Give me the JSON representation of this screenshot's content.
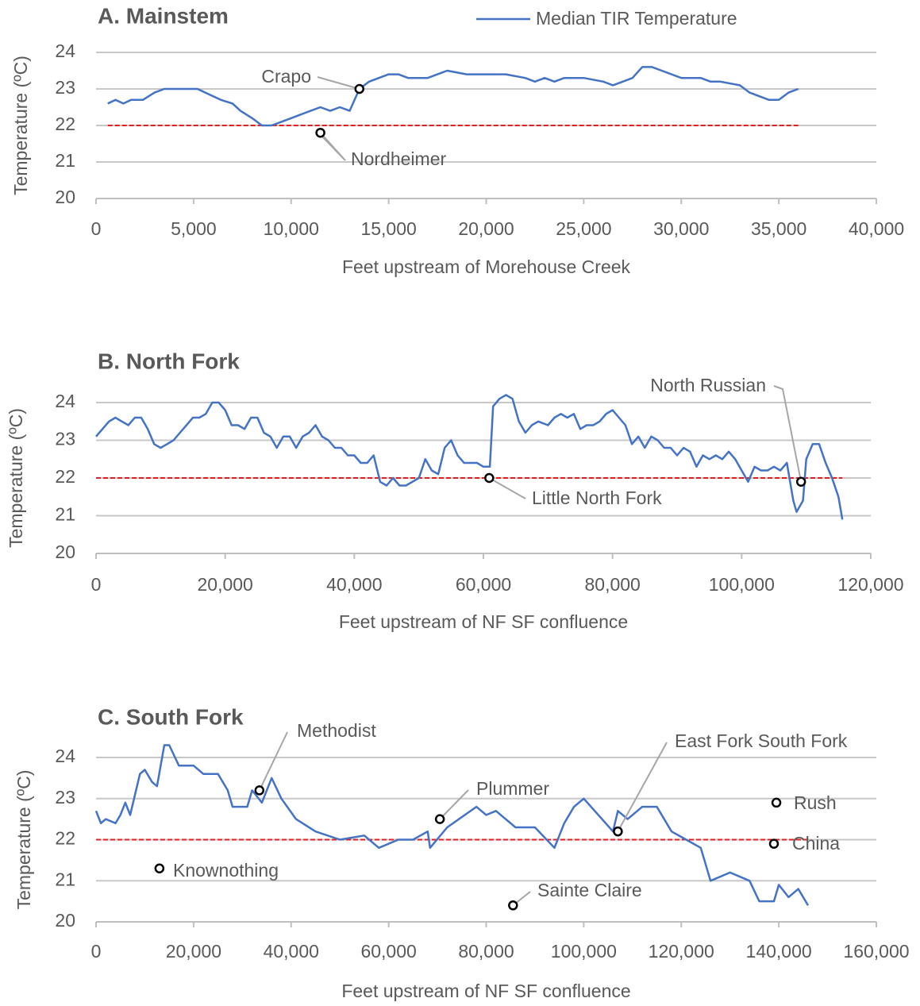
{
  "chart_data": [
    {
      "type": "line",
      "title": "A. Mainstem",
      "xlabel": "Feet upstream of Morehouse Creek",
      "ylabel": "Temperature (ºC)",
      "x": [
        600,
        1000,
        1400,
        1800,
        2400,
        3000,
        3500,
        5200,
        5600,
        6400,
        7000,
        7400,
        8000,
        8500,
        9000,
        9500,
        10000,
        10500,
        11000,
        11500,
        12000,
        12500,
        13000,
        13500,
        14000,
        14500,
        15000,
        15500,
        16000,
        17000,
        17500,
        18000,
        19000,
        20000,
        21000,
        22000,
        22500,
        23000,
        23500,
        24000,
        25000,
        26000,
        26500,
        27000,
        27500,
        28000,
        28500,
        29000,
        30000,
        31000,
        31500,
        32000,
        33000,
        33500,
        34000,
        34500,
        35000,
        35500,
        36000
      ],
      "series": [
        {
          "name": "Median TIR Temperature",
          "color": "#4472c4",
          "values": [
            22.6,
            22.7,
            22.6,
            22.7,
            22.7,
            22.9,
            23.0,
            23.0,
            22.9,
            22.7,
            22.6,
            22.4,
            22.2,
            22.0,
            22.0,
            22.1,
            22.2,
            22.3,
            22.4,
            22.5,
            22.4,
            22.5,
            22.4,
            23.0,
            23.2,
            23.3,
            23.4,
            23.4,
            23.3,
            23.3,
            23.4,
            23.5,
            23.4,
            23.4,
            23.4,
            23.3,
            23.2,
            23.3,
            23.2,
            23.3,
            23.3,
            23.2,
            23.1,
            23.2,
            23.3,
            23.6,
            23.6,
            23.5,
            23.3,
            23.3,
            23.2,
            23.2,
            23.1,
            22.9,
            22.8,
            22.7,
            22.7,
            22.9,
            23.0
          ]
        }
      ],
      "reference_line": {
        "value": 22,
        "color": "#e02020"
      },
      "points": [
        {
          "label": "Crapo",
          "x": 13500,
          "y": 23.0
        },
        {
          "label": "Nordheimer",
          "x": 11500,
          "y": 21.8
        }
      ],
      "xlim": [
        0,
        40000
      ],
      "ylim": [
        20,
        24
      ],
      "xticks": [
        0,
        {
          "value": 5000,
          "label": "5,000"
        },
        {
          "value": 10000,
          "label": "10,000"
        },
        {
          "value": 15000,
          "label": "15,000"
        },
        {
          "value": 20000,
          "label": "20,000"
        },
        {
          "value": 25000,
          "label": "25,000"
        },
        {
          "value": 30000,
          "label": "30,000"
        },
        {
          "value": 35000,
          "label": "35,000"
        },
        {
          "value": 40000,
          "label": "40,000"
        }
      ],
      "yticks": [
        20,
        21,
        22,
        23,
        24
      ],
      "grid": true
    },
    {
      "type": "line",
      "title": "B. North Fork",
      "xlabel": "Feet upstream of NF SF confluence",
      "ylabel": "Temperature (ºC)",
      "x": [
        0,
        1000,
        2000,
        3000,
        4000,
        5000,
        6000,
        7000,
        8000,
        9000,
        10000,
        11000,
        12000,
        13000,
        14000,
        15000,
        16000,
        17000,
        18000,
        19000,
        20000,
        21000,
        22000,
        23000,
        24000,
        25000,
        26000,
        27000,
        28000,
        29000,
        30000,
        31000,
        32000,
        33000,
        34000,
        35000,
        36000,
        37000,
        38000,
        39000,
        40000,
        41000,
        42000,
        43000,
        44000,
        45000,
        46000,
        47000,
        48000,
        49000,
        50000,
        51000,
        52000,
        53000,
        54000,
        55000,
        56000,
        57000,
        58000,
        59000,
        60000,
        61000,
        61500,
        62500,
        63500,
        64500,
        65500,
        66500,
        67500,
        68500,
        70000,
        71000,
        72000,
        73000,
        74000,
        75000,
        76000,
        77000,
        78000,
        79000,
        80000,
        81000,
        82000,
        83000,
        84000,
        85000,
        86000,
        87000,
        88000,
        89000,
        90000,
        91000,
        92000,
        93000,
        94000,
        95000,
        96000,
        97000,
        98000,
        99000,
        100000,
        101000,
        102000,
        103000,
        104000,
        105000,
        106000,
        107000,
        108000,
        108500,
        109500,
        110000,
        111000,
        112000,
        113000,
        114000,
        115000,
        115600
      ],
      "series": [
        {
          "color": "#4472c4",
          "values": [
            23.1,
            23.3,
            23.5,
            23.6,
            23.5,
            23.4,
            23.6,
            23.6,
            23.3,
            22.9,
            22.8,
            22.9,
            23.0,
            23.2,
            23.4,
            23.6,
            23.6,
            23.7,
            24.0,
            24.0,
            23.8,
            23.4,
            23.4,
            23.3,
            23.6,
            23.6,
            23.2,
            23.1,
            22.8,
            23.1,
            23.1,
            22.8,
            23.1,
            23.2,
            23.4,
            23.1,
            23.0,
            22.8,
            22.8,
            22.6,
            22.6,
            22.4,
            22.4,
            22.6,
            21.9,
            21.8,
            22.0,
            21.8,
            21.8,
            21.9,
            22.0,
            22.5,
            22.2,
            22.1,
            22.8,
            23.0,
            22.6,
            22.4,
            22.4,
            22.4,
            22.3,
            22.3,
            23.9,
            24.1,
            24.2,
            24.1,
            23.5,
            23.2,
            23.4,
            23.5,
            23.4,
            23.6,
            23.7,
            23.6,
            23.7,
            23.3,
            23.4,
            23.4,
            23.5,
            23.7,
            23.8,
            23.6,
            23.4,
            22.9,
            23.1,
            22.8,
            23.1,
            23.0,
            22.8,
            22.8,
            22.6,
            22.8,
            22.7,
            22.3,
            22.6,
            22.5,
            22.6,
            22.5,
            22.7,
            22.5,
            22.2,
            21.9,
            22.3,
            22.2,
            22.2,
            22.3,
            22.2,
            22.4,
            21.4,
            21.1,
            21.4,
            22.5,
            22.9,
            22.9,
            22.4,
            22.0,
            21.5,
            20.9
          ]
        }
      ],
      "reference_line": {
        "value": 22,
        "color": "#e02020"
      },
      "points": [
        {
          "label": "Little North Fork",
          "x": 60900,
          "y": 22.0
        },
        {
          "label": "North Russian",
          "x": 109200,
          "y": 21.9
        }
      ],
      "xlim": [
        0,
        120000
      ],
      "ylim": [
        20,
        24
      ],
      "xticks": [
        0,
        {
          "value": 20000,
          "label": "20,000"
        },
        {
          "value": 40000,
          "label": "40,000"
        },
        {
          "value": 60000,
          "label": "60,000"
        },
        {
          "value": 80000,
          "label": "80,000"
        },
        {
          "value": 100000,
          "label": "100,000"
        },
        {
          "value": 120000,
          "label": "120,000"
        }
      ],
      "yticks": [
        20,
        21,
        22,
        23,
        24
      ],
      "grid": true
    },
    {
      "type": "line",
      "title": "C. South Fork",
      "xlabel": "Feet upstream of NF SF confluence",
      "ylabel": "Temperature (ºC)",
      "x": [
        0,
        1000,
        2000,
        4000,
        5000,
        6000,
        7000,
        9000,
        10000,
        11500,
        12500,
        14000,
        15000,
        17000,
        20000,
        22000,
        25000,
        27000,
        28000,
        31000,
        32000,
        34000,
        36000,
        38000,
        41000,
        45000,
        50000,
        55000,
        58000,
        62000,
        65000,
        68000,
        68500,
        72000,
        78000,
        80000,
        82000,
        86000,
        90000,
        94000,
        96000,
        98000,
        100000,
        103000,
        106000,
        107000,
        109000,
        112000,
        115000,
        118000,
        121000,
        124000,
        126000,
        130000,
        134000,
        136000,
        139000,
        140000,
        142000,
        144000,
        146000
      ],
      "series": [
        {
          "color": "#4472c4",
          "values": [
            22.7,
            22.4,
            22.5,
            22.4,
            22.6,
            22.9,
            22.6,
            23.6,
            23.7,
            23.4,
            23.3,
            24.3,
            24.3,
            23.8,
            23.8,
            23.6,
            23.6,
            23.2,
            22.8,
            22.8,
            23.2,
            22.9,
            23.5,
            23.0,
            22.5,
            22.2,
            22.0,
            22.1,
            21.8,
            22.0,
            22.0,
            22.2,
            21.8,
            22.3,
            22.8,
            22.6,
            22.7,
            22.3,
            22.3,
            21.8,
            22.4,
            22.8,
            23.0,
            22.6,
            22.2,
            22.7,
            22.5,
            22.8,
            22.8,
            22.2,
            22.0,
            21.8,
            21.0,
            21.2,
            21.0,
            20.5,
            20.5,
            20.9,
            20.6,
            20.8,
            20.4
          ]
        }
      ],
      "reference_line": {
        "value": 22,
        "color": "#e02020"
      },
      "points": [
        {
          "label": "Methodist",
          "x": 33500,
          "y": 23.2
        },
        {
          "label": "Plummer",
          "x": 70500,
          "y": 22.5
        },
        {
          "label": "East Fork South Fork",
          "x": 107000,
          "y": 22.2
        },
        {
          "label": "Rush",
          "x": 139500,
          "y": 22.9
        },
        {
          "label": "China",
          "x": 139000,
          "y": 21.9
        },
        {
          "label": "Knownothing",
          "x": 13000,
          "y": 21.3
        },
        {
          "label": "Sainte Claire",
          "x": 85500,
          "y": 20.4
        }
      ],
      "xlim": [
        0,
        160000
      ],
      "ylim": [
        20,
        24
      ],
      "xticks": [
        0,
        {
          "value": 20000,
          "label": "20,000"
        },
        {
          "value": 40000,
          "label": "40,000"
        },
        {
          "value": 60000,
          "label": "60,000"
        },
        {
          "value": 80000,
          "label": "80,000"
        },
        {
          "value": 100000,
          "label": "100,000"
        },
        {
          "value": 120000,
          "label": "120,000"
        },
        {
          "value": 140000,
          "label": "140,000"
        },
        {
          "value": 160000,
          "label": "160,000"
        }
      ],
      "yticks": [
        20,
        21,
        22,
        23,
        24
      ],
      "grid": true
    }
  ]
}
